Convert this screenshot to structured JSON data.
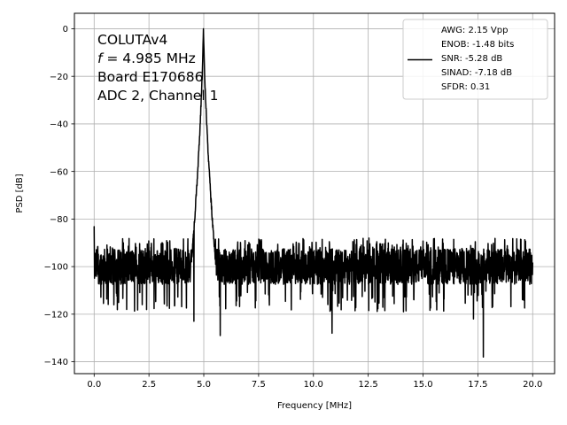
{
  "chart_data": {
    "type": "line",
    "xlabel": "Frequency [MHz]",
    "ylabel": "PSD [dB]",
    "xlim": [
      -0.9,
      21.0
    ],
    "ylim": [
      -145,
      6.5
    ],
    "xticks": [
      0.0,
      2.5,
      5.0,
      7.5,
      10.0,
      12.5,
      15.0,
      17.5,
      20.0
    ],
    "xtick_labels": [
      "0.0",
      "2.5",
      "5.0",
      "7.5",
      "10.0",
      "12.5",
      "15.0",
      "17.5",
      "20.0"
    ],
    "yticks": [
      0,
      -20,
      -40,
      -60,
      -80,
      -100,
      -120,
      -140
    ],
    "ytick_labels": [
      "0",
      "−20",
      "−40",
      "−60",
      "−80",
      "−100",
      "−120",
      "−140"
    ],
    "grid": true,
    "line_color": "#000000",
    "annotation_lines": [
      {
        "prefix": "COLUTAv4",
        "italic": "",
        "suffix": ""
      },
      {
        "prefix": "",
        "italic": "f",
        "suffix": " = 4.985 MHz"
      },
      {
        "prefix": "Board E170686",
        "italic": "",
        "suffix": ""
      },
      {
        "prefix": "ADC 2, Channel 1",
        "italic": "",
        "suffix": ""
      }
    ],
    "legend_position": "top-right",
    "legend_lines": [
      "AWG: 2.15 Vpp",
      "ENOB: -1.48 bits",
      "SNR: -5.28 dB",
      "SINAD: -7.18 dB",
      "SFDR: 0.31"
    ],
    "series": [
      {
        "x_start": 0.0,
        "x_end": 20.0,
        "noise_floor": -100,
        "peak": {
          "x": 4.985,
          "y": 0
        },
        "spurs": [
          {
            "x": 0.0,
            "y": -83
          },
          {
            "x": 4.55,
            "y": -123
          },
          {
            "x": 5.75,
            "y": -129
          },
          {
            "x": 10.85,
            "y": -128
          },
          {
            "x": 17.3,
            "y": -122
          },
          {
            "x": 17.75,
            "y": -138
          }
        ]
      }
    ]
  }
}
